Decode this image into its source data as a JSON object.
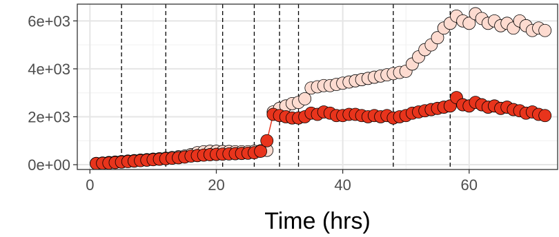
{
  "chart_data": {
    "type": "scatter",
    "title": "",
    "xlabel": "Time (hrs)",
    "ylabel": "",
    "xlim": [
      -2,
      74
    ],
    "ylim": [
      -200,
      6700
    ],
    "x_ticks": [
      0,
      20,
      40,
      60
    ],
    "x_tick_labels": [
      "0",
      "20",
      "40",
      "60"
    ],
    "y_ticks": [
      0,
      2000,
      4000,
      6000
    ],
    "y_tick_labels": [
      "0e+00",
      "2e+03",
      "4e+03",
      "6e+03"
    ],
    "grid": true,
    "legend": "none",
    "vertical_lines": [
      5,
      12,
      21,
      26,
      30,
      33,
      48,
      57
    ],
    "series": [
      {
        "color": "#fddbd0",
        "connect_line": false,
        "x": [
          1,
          2,
          3,
          4,
          5,
          6,
          7,
          8,
          9,
          10,
          11,
          12,
          13,
          14,
          15,
          16,
          17,
          18,
          19,
          20,
          21,
          22,
          23,
          24,
          25,
          26,
          27,
          28,
          29,
          30,
          31,
          32,
          33,
          34,
          35,
          36,
          37,
          38,
          39,
          40,
          41,
          42,
          43,
          44,
          45,
          46,
          47,
          48,
          49,
          50,
          51,
          52,
          53,
          54,
          55,
          56,
          57,
          58,
          59,
          60,
          61,
          62,
          63,
          64,
          65,
          66,
          67,
          68,
          69,
          70,
          71,
          72
        ],
        "y": [
          50,
          70,
          90,
          110,
          130,
          150,
          170,
          190,
          210,
          230,
          250,
          270,
          300,
          330,
          360,
          420,
          500,
          540,
          560,
          560,
          550,
          550,
          540,
          540,
          540,
          560,
          580,
          600,
          2200,
          2350,
          2450,
          2550,
          2600,
          2750,
          3200,
          3250,
          3300,
          3300,
          3350,
          3400,
          3450,
          3500,
          3550,
          3600,
          3650,
          3700,
          3750,
          3800,
          3850,
          3900,
          4200,
          4500,
          4800,
          5000,
          5300,
          5700,
          5900,
          6200,
          6000,
          5900,
          6300,
          6100,
          5900,
          6000,
          5800,
          5900,
          5700,
          6000,
          5800,
          5600,
          5700,
          5600
        ]
      },
      {
        "color": "#e8341c",
        "connect_line": true,
        "x": [
          1,
          2,
          3,
          4,
          5,
          6,
          7,
          8,
          9,
          10,
          11,
          12,
          13,
          14,
          15,
          16,
          17,
          18,
          19,
          20,
          21,
          22,
          23,
          24,
          25,
          26,
          27,
          28,
          29,
          30,
          31,
          32,
          33,
          34,
          35,
          36,
          37,
          38,
          39,
          40,
          41,
          42,
          43,
          44,
          45,
          46,
          47,
          48,
          49,
          50,
          51,
          52,
          53,
          54,
          55,
          56,
          57,
          58,
          59,
          60,
          61,
          62,
          63,
          64,
          65,
          66,
          67,
          68,
          69,
          70,
          71,
          72
        ],
        "y": [
          50,
          60,
          70,
          90,
          110,
          130,
          150,
          170,
          190,
          210,
          230,
          250,
          270,
          290,
          320,
          360,
          380,
          400,
          420,
          430,
          440,
          450,
          460,
          470,
          480,
          500,
          560,
          1000,
          2100,
          2050,
          2000,
          1950,
          1950,
          2000,
          2150,
          2100,
          2200,
          2150,
          2050,
          2050,
          2100,
          2100,
          2050,
          2000,
          2050,
          2000,
          2050,
          1950,
          2000,
          2050,
          2150,
          2200,
          2250,
          2300,
          2350,
          2400,
          2450,
          2800,
          2500,
          2450,
          2600,
          2500,
          2400,
          2450,
          2350,
          2400,
          2300,
          2250,
          2150,
          2200,
          2100,
          2050
        ]
      }
    ]
  }
}
